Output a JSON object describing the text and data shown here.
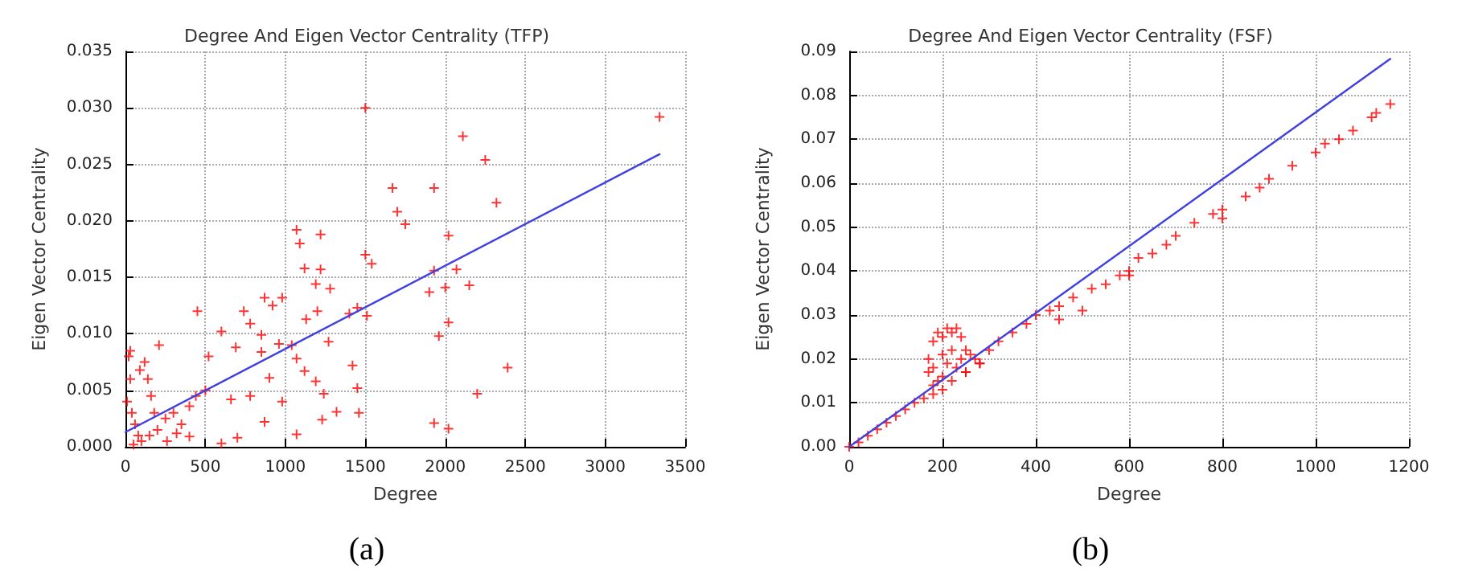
{
  "chart_data": [
    {
      "type": "scatter",
      "title": "Degree And Eigen Vector Centrality (TFP)",
      "xlabel": "Degree",
      "ylabel": "Eigen Vector Centrality",
      "annotations": [
        "(a)"
      ],
      "grid": true,
      "marker": "cross",
      "xlim": [
        0,
        3500
      ],
      "xticks": [
        0,
        500,
        1000,
        1500,
        2000,
        2500,
        3000,
        3500
      ],
      "ylim": [
        0,
        0.035
      ],
      "yticks": [
        {
          "value": 0,
          "label": "0.000"
        },
        {
          "value": 0.005,
          "label": "0.005"
        },
        {
          "value": 0.01,
          "label": "0.010"
        },
        {
          "value": 0.015,
          "label": "0.015"
        },
        {
          "value": 0.02,
          "label": "0.020"
        },
        {
          "value": 0.025,
          "label": "0.025"
        },
        {
          "value": 0.03,
          "label": "0.030"
        },
        {
          "value": 0.035,
          "label": "0.035"
        }
      ],
      "series": [
        {
          "color": "#ff0000",
          "x": [
            3340,
            1500,
            2110,
            2250,
            2320,
            1670,
            1930,
            1700,
            1750,
            1070,
            1220,
            2020,
            1090,
            1500,
            1540,
            1120,
            1220,
            1930,
            2070,
            1190,
            1280,
            2150,
            2000,
            1900,
            870,
            980,
            920,
            1450,
            1400,
            1200,
            450,
            740,
            1510,
            1130,
            780,
            2020,
            600,
            850,
            1960,
            960,
            1040,
            690,
            850,
            1270,
            520,
            1070,
            1420,
            2390,
            1120,
            900,
            1190,
            1450,
            1240,
            2200,
            500,
            440,
            780,
            660,
            980,
            1320,
            1460,
            870,
            1230,
            1930,
            1070,
            2020,
            700,
            600,
            300,
            350,
            400,
            250,
            200,
            150,
            100,
            50,
            20,
            30,
            10,
            40,
            60,
            80,
            120,
            160,
            210,
            140,
            260,
            320,
            400,
            30,
            90,
            180
          ],
          "values": [
            0.0292,
            0.03,
            0.0275,
            0.0254,
            0.0216,
            0.0229,
            0.0229,
            0.0208,
            0.0197,
            0.0192,
            0.0188,
            0.0187,
            0.018,
            0.017,
            0.0162,
            0.0158,
            0.0157,
            0.0156,
            0.0157,
            0.0144,
            0.014,
            0.0143,
            0.0141,
            0.0137,
            0.0132,
            0.0132,
            0.0125,
            0.0123,
            0.0118,
            0.012,
            0.012,
            0.012,
            0.0116,
            0.0113,
            0.0109,
            0.011,
            0.0102,
            0.0099,
            0.0098,
            0.0091,
            0.009,
            0.0088,
            0.0084,
            0.0093,
            0.008,
            0.0078,
            0.0072,
            0.007,
            0.0067,
            0.0061,
            0.0058,
            0.0052,
            0.0047,
            0.0047,
            0.005,
            0.0045,
            0.0045,
            0.0042,
            0.004,
            0.0031,
            0.003,
            0.0022,
            0.0024,
            0.0021,
            0.0011,
            0.0016,
            0.0008,
            0.0003,
            0.003,
            0.002,
            0.0036,
            0.0025,
            0.0015,
            0.001,
            0.0005,
            0.0002,
            0.008,
            0.006,
            0.004,
            0.003,
            0.002,
            0.001,
            0.0075,
            0.0045,
            0.009,
            0.006,
            0.0005,
            0.0012,
            0.0009,
            0.0085,
            0.0068,
            0.003
          ]
        },
        {
          "type": "line",
          "color": "#4040e0",
          "marker": "none",
          "line_style": "solid",
          "x": [
            0,
            3340
          ],
          "values": [
            0.0013,
            0.0259
          ]
        }
      ]
    },
    {
      "type": "scatter",
      "title": "Degree And Eigen Vector Centrality (FSF)",
      "xlabel": "Degree",
      "ylabel": "Eigen Vector Centrality",
      "annotations": [
        "(b)"
      ],
      "grid": true,
      "marker": "cross",
      "xlim": [
        0,
        1200
      ],
      "xticks": [
        0,
        200,
        400,
        600,
        800,
        1000,
        1200
      ],
      "ylim": [
        0,
        0.09
      ],
      "yticks": [
        {
          "value": 0,
          "label": "0.00"
        },
        {
          "value": 0.01,
          "label": "0.01"
        },
        {
          "value": 0.02,
          "label": "0.02"
        },
        {
          "value": 0.03,
          "label": "0.03"
        },
        {
          "value": 0.04,
          "label": "0.04"
        },
        {
          "value": 0.05,
          "label": "0.05"
        },
        {
          "value": 0.06,
          "label": "0.06"
        },
        {
          "value": 0.07,
          "label": "0.07"
        },
        {
          "value": 0.08,
          "label": "0.08"
        },
        {
          "value": 0.09,
          "label": "0.09"
        }
      ],
      "series": [
        {
          "color": "#ff0000",
          "x": [
            0,
            20,
            40,
            60,
            80,
            100,
            120,
            140,
            160,
            180,
            200,
            220,
            250,
            280,
            300,
            320,
            350,
            380,
            400,
            430,
            450,
            450,
            480,
            500,
            520,
            550,
            580,
            600,
            600,
            620,
            650,
            680,
            700,
            740,
            780,
            800,
            800,
            850,
            880,
            900,
            950,
            1000,
            1020,
            1050,
            1080,
            1120,
            1130,
            1160,
            170,
            170,
            180,
            190,
            200,
            210,
            220,
            230,
            240,
            180,
            200,
            210,
            220,
            240,
            250,
            260,
            270,
            280,
            190,
            200,
            230,
            250,
            180
          ],
          "values": [
            0,
            0.001,
            0.0025,
            0.004,
            0.0055,
            0.007,
            0.0085,
            0.01,
            0.011,
            0.012,
            0.013,
            0.015,
            0.017,
            0.019,
            0.022,
            0.024,
            0.026,
            0.028,
            0.03,
            0.031,
            0.032,
            0.029,
            0.034,
            0.031,
            0.036,
            0.037,
            0.039,
            0.04,
            0.039,
            0.043,
            0.044,
            0.046,
            0.048,
            0.051,
            0.053,
            0.054,
            0.052,
            0.057,
            0.059,
            0.061,
            0.064,
            0.067,
            0.069,
            0.07,
            0.072,
            0.075,
            0.076,
            0.078,
            0.02,
            0.017,
            0.024,
            0.026,
            0.025,
            0.027,
            0.026,
            0.027,
            0.025,
            0.018,
            0.021,
            0.019,
            0.022,
            0.02,
            0.022,
            0.021,
            0.02,
            0.019,
            0.015,
            0.016,
            0.018,
            0.017,
            0.014
          ]
        },
        {
          "type": "line",
          "color": "#4040e0",
          "marker": "none",
          "line_style": "solid",
          "x": [
            0,
            1160
          ],
          "values": [
            0,
            0.0883
          ]
        }
      ]
    }
  ]
}
